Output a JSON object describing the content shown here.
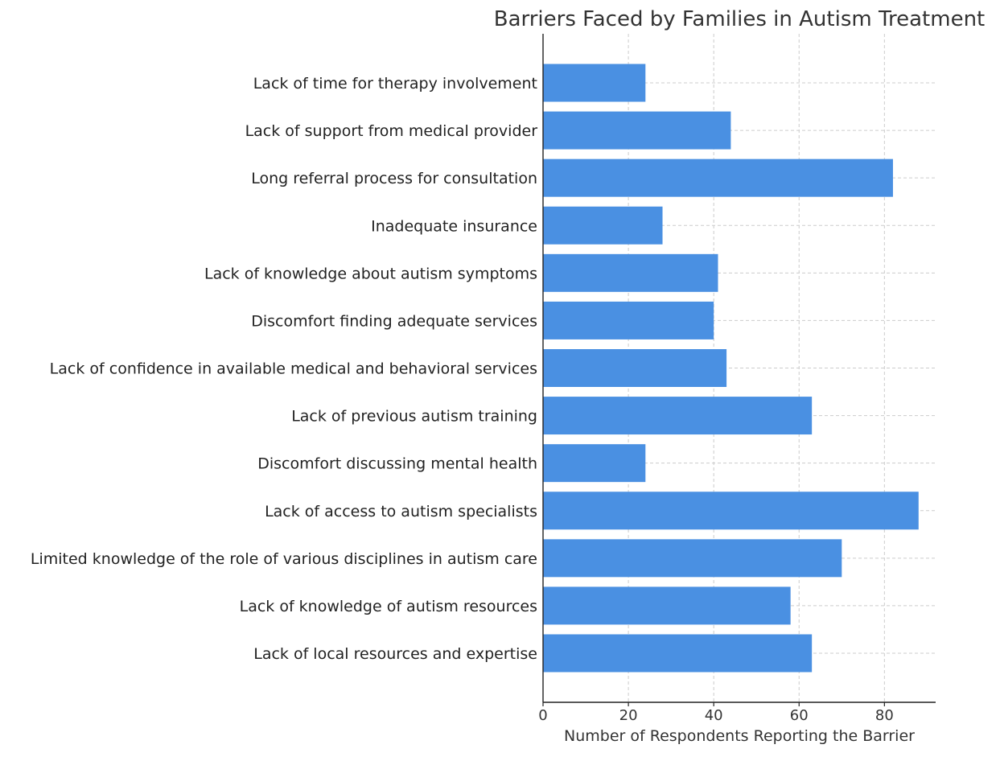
{
  "chart_data": {
    "type": "bar",
    "orientation": "horizontal",
    "title": "Barriers Faced by Families in Autism Treatment",
    "xlabel": "Number of Respondents Reporting the Barrier",
    "ylabel": "",
    "xlim": [
      0,
      92
    ],
    "xticks": [
      0,
      20,
      40,
      60,
      80
    ],
    "grid": true,
    "bar_color": "#4a90e2",
    "categories": [
      "Lack of time for therapy involvement",
      "Lack of support from medical provider",
      "Long referral process for consultation",
      "Inadequate insurance",
      "Lack of knowledge about autism symptoms",
      "Discomfort finding adequate services",
      "Lack of confidence in available medical and behavioral services",
      "Lack of previous autism training",
      "Discomfort discussing mental health",
      "Lack of access to autism specialists",
      "Limited knowledge of the role of various disciplines in autism care",
      "Lack of knowledge of autism resources",
      "Lack of local resources and expertise"
    ],
    "values": [
      24,
      44,
      82,
      28,
      41,
      40,
      43,
      63,
      24,
      88,
      70,
      58,
      63
    ]
  }
}
